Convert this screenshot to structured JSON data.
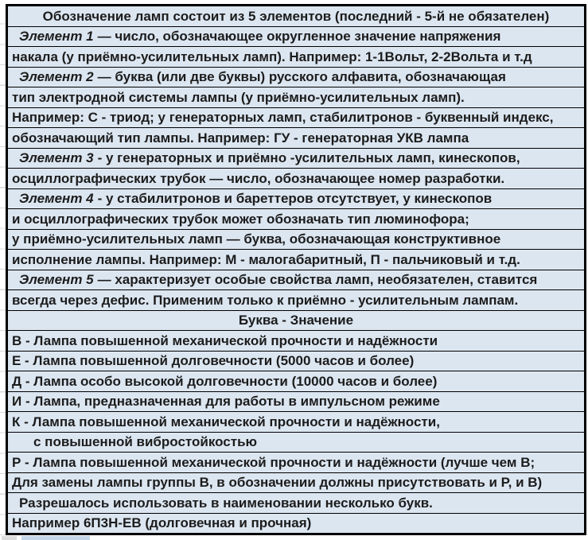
{
  "table": {
    "title_row": "Обозначение ламп состоит из 5 элементов (последний - 5-й не обязателен)",
    "colors": {
      "cell_fill": "#dce6f1",
      "border": "#000000",
      "text": "#1c1c1c",
      "margin_gridline": "#d8d8d8",
      "bottom_fragment_gray": "#dddddd",
      "bottom_fragment_blue": "#c4d6e8"
    },
    "rows": [
      {
        "text": "Обозначение ламп состоит из 5 элементов (последний - 5-й не обязателен)",
        "align": "center"
      },
      {
        "em": "Элемент 1",
        "text": "— число, обозначающее округленное значение напряжения",
        "indent": 1
      },
      {
        "text": "накала (у приёмно-усилительных ламп). Например: 1-1Вольт, 2-2Вольта и т.д"
      },
      {
        "em": "Элемент 2",
        "text": "— буква (или две буквы) русского алфавита, обозначающая",
        "indent": 1
      },
      {
        "text": "тип электродной системы лампы (у приёмно-усилительных ламп)."
      },
      {
        "text": "Например: С - триод; у генераторных ламп, стабилитронов - буквенный индекс,"
      },
      {
        "text": "обозначающий тип лампы. Например: ГУ - генераторная УКВ лампа"
      },
      {
        "em": "Элемент 3",
        "text": "- у генераторных и приёмно  -усилительных ламп, кинескопов,",
        "indent": 1
      },
      {
        "text": "осциллографических трубок — число, обозначающее номер разработки."
      },
      {
        "em": "Элемент 4",
        "text": "- у стабилитронов и бареттеров отсутствует, у кинескопов",
        "indent": 1
      },
      {
        "text": "и осциллографических трубок может обозначать тип люминофора;"
      },
      {
        "text": "у приёмно-усилительных ламп — буква, обозначающая конструктивное"
      },
      {
        "text": "исполнение лампы. Например: М - малогабаритный, П - пальчиковый и т.д."
      },
      {
        "em": "Элемент 5",
        "text": "— характеризует особые свойства ламп, необязателен, ставится",
        "indent": 1
      },
      {
        "text": "всегда через дефис. Применим только к приёмно - усилительным лампам."
      },
      {
        "text": "Буква -  Значение",
        "align": "center"
      },
      {
        "text": "В - Лампа повышенной механической прочности и надёжности"
      },
      {
        "text": "Е - Лампа повышенной долговечности (5000 часов и более)"
      },
      {
        "text": "Д - Лампа особо высокой долговечности (10000 часов и более)"
      },
      {
        "text": "И - Лампа, предназначенная для работы в импульсном режиме"
      },
      {
        "text": "К - Лампа повышенной механической прочности и надёжности,"
      },
      {
        "text": "с повышенной вибростойкостью",
        "indent": 2
      },
      {
        "text": "Р - Лампа повышенной механической прочности и надёжности (лучше чем В;"
      },
      {
        "text": "Для замены лампы группы В, в обозначении должны присутствовать и Р, и В)"
      },
      {
        "text": "Разрешалось использовать в наименовании несколько букв.",
        "indent": 1
      },
      {
        "text": "Например 6П3Н-ЕВ (долговечная и прочная)"
      }
    ]
  }
}
